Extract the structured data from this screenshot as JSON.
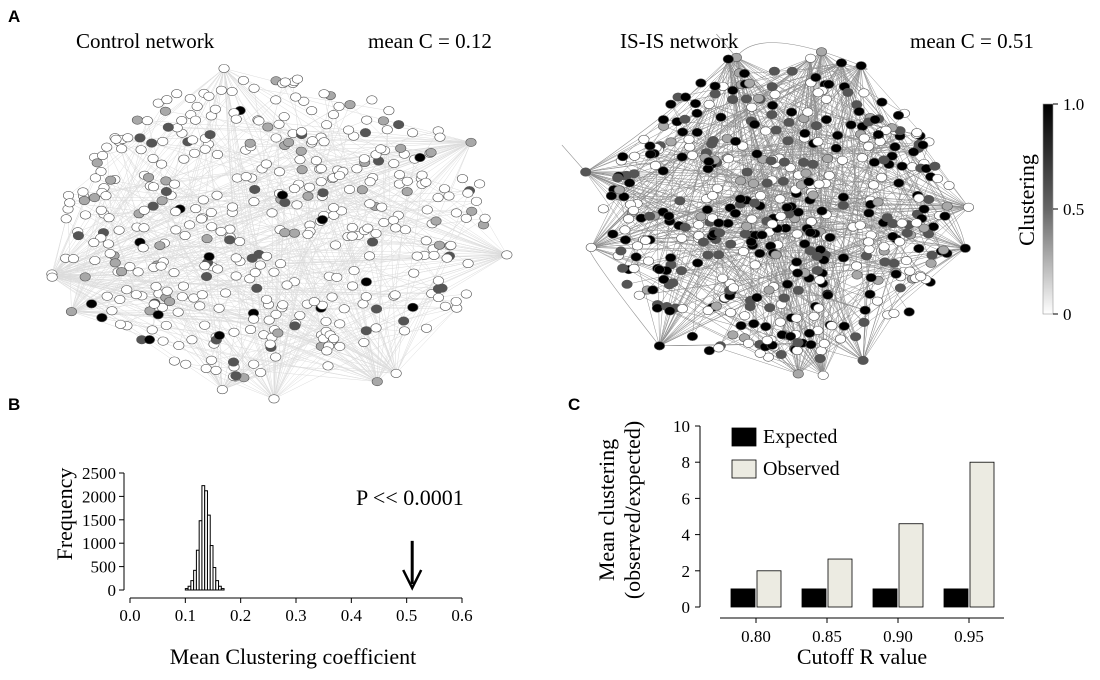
{
  "figure": {
    "panels": {
      "a": "A",
      "b": "B",
      "c": "C"
    }
  },
  "chart_data": [
    {
      "type": "network",
      "panel": "A",
      "title": "Control  network",
      "annotation": "mean C = 0.12",
      "mean_clustering": 0.12
    },
    {
      "type": "network",
      "panel": "A",
      "title": "IS-IS network",
      "annotation": "mean  C = 0.51",
      "mean_clustering": 0.51
    },
    {
      "type": "colorbar",
      "panel": "A",
      "label": "Clustering",
      "range": [
        0,
        1
      ],
      "tick_labels": [
        "1.0",
        "0.5",
        "0"
      ],
      "colors": {
        "low": "#ffffff",
        "high": "#000000"
      }
    },
    {
      "type": "histogram",
      "panel": "B",
      "xlabel": "Mean Clustering coefficient",
      "ylabel": "Frequency",
      "xlim": [
        0.0,
        0.6
      ],
      "ylim": [
        0,
        2500
      ],
      "x_ticks": [
        "0.0",
        "0.1",
        "0.2",
        "0.3",
        "0.4",
        "0.5",
        "0.6"
      ],
      "y_ticks": [
        "0",
        "500",
        "1000",
        "1500",
        "2000",
        "2500"
      ],
      "bin_width": 0.005,
      "bins": [
        {
          "x0": 0.1,
          "count": 30
        },
        {
          "x0": 0.105,
          "count": 80
        },
        {
          "x0": 0.11,
          "count": 200
        },
        {
          "x0": 0.115,
          "count": 420
        },
        {
          "x0": 0.12,
          "count": 850
        },
        {
          "x0": 0.125,
          "count": 1480
        },
        {
          "x0": 0.13,
          "count": 2230
        },
        {
          "x0": 0.135,
          "count": 2120
        },
        {
          "x0": 0.14,
          "count": 1600
        },
        {
          "x0": 0.145,
          "count": 950
        },
        {
          "x0": 0.15,
          "count": 480
        },
        {
          "x0": 0.155,
          "count": 200
        },
        {
          "x0": 0.16,
          "count": 80
        },
        {
          "x0": 0.165,
          "count": 30
        }
      ],
      "annotation": "P << 0.0001",
      "observed_value": 0.51,
      "arrow_top_count": 1050
    },
    {
      "type": "bar",
      "panel": "C",
      "xlabel": "Cutoff R value",
      "ylabel": "Mean clustering (observed/expected)",
      "ylabel_lines": [
        "Mean clustering",
        "(observed/expected)"
      ],
      "ylim": [
        0,
        10
      ],
      "y_ticks": [
        "0",
        "2",
        "4",
        "6",
        "8",
        "10"
      ],
      "categories": [
        "0.80",
        "0.85",
        "0.90",
        "0.95"
      ],
      "series": [
        {
          "name": "Expected",
          "values": [
            1,
            1,
            1,
            1
          ],
          "color": "#000000"
        },
        {
          "name": "Observed",
          "values": [
            2.0,
            2.65,
            4.6,
            8.0
          ],
          "color": "#ecebe2"
        }
      ],
      "legend_position": "top-left"
    }
  ]
}
